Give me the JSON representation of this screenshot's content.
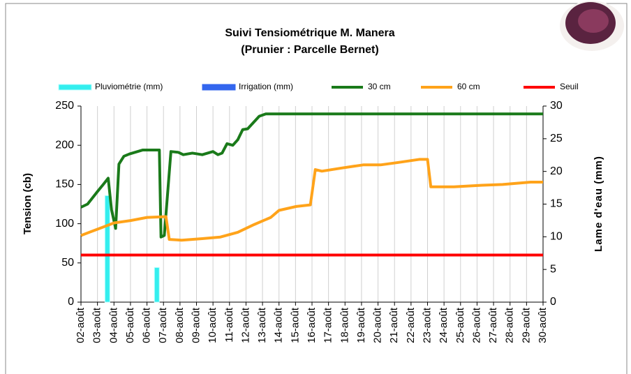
{
  "chart_data": {
    "type": "line",
    "title": "Suivi Tensiométrique M. Manera",
    "subtitle": "(Prunier : Parcelle Bernet)",
    "ylabel": "Tension (cb)",
    "y2label": "Lame d'eau (mm)",
    "xlim": [
      2,
      30
    ],
    "xticks": [
      {
        "value": 2,
        "label": "02-août"
      },
      {
        "value": 3,
        "label": "03-août"
      },
      {
        "value": 4,
        "label": "04-août"
      },
      {
        "value": 5,
        "label": "05-août"
      },
      {
        "value": 6,
        "label": "06-août"
      },
      {
        "value": 7,
        "label": "07-août"
      },
      {
        "value": 8,
        "label": "08-août"
      },
      {
        "value": 9,
        "label": "09-août"
      },
      {
        "value": 10,
        "label": "10-août"
      },
      {
        "value": 11,
        "label": "11-août"
      },
      {
        "value": 12,
        "label": "12-août"
      },
      {
        "value": 13,
        "label": "13-août"
      },
      {
        "value": 14,
        "label": "14-août"
      },
      {
        "value": 15,
        "label": "15-août"
      },
      {
        "value": 16,
        "label": "16-août"
      },
      {
        "value": 17,
        "label": "17-août"
      },
      {
        "value": 18,
        "label": "18-août"
      },
      {
        "value": 19,
        "label": "19-août"
      },
      {
        "value": 20,
        "label": "20-août"
      },
      {
        "value": 21,
        "label": "21-août"
      },
      {
        "value": 22,
        "label": "22-août"
      },
      {
        "value": 23,
        "label": "23-août"
      },
      {
        "value": 24,
        "label": "24-août"
      },
      {
        "value": 25,
        "label": "25-août"
      },
      {
        "value": 26,
        "label": "26-août"
      },
      {
        "value": 27,
        "label": "27-août"
      },
      {
        "value": 28,
        "label": "28-août"
      },
      {
        "value": 29,
        "label": "29-août"
      },
      {
        "value": 30,
        "label": "30-août"
      }
    ],
    "ylim": [
      0,
      250
    ],
    "yticks": [
      0,
      50,
      100,
      150,
      200,
      250
    ],
    "y2lim": [
      0,
      30
    ],
    "y2ticks": [
      0,
      5,
      10,
      15,
      20,
      25,
      30
    ],
    "grid": true,
    "series": [
      {
        "name": "Pluviométrie (mm)",
        "type": "bar",
        "axis": "y2",
        "color": "#33eeee",
        "x": [
          3.6,
          6.6
        ],
        "values": [
          16.3,
          5.3
        ]
      },
      {
        "name": "Irrigation (mm)",
        "type": "bar",
        "axis": "y2",
        "color": "#3366ee",
        "x": [],
        "values": []
      },
      {
        "name": "30 cm",
        "type": "line",
        "color": "#1a7a1a",
        "x": [
          2.0,
          2.4,
          3.0,
          3.35,
          3.65,
          3.85,
          4.1,
          4.3,
          4.6,
          4.95,
          5.75,
          6.75,
          6.85,
          7.05,
          7.45,
          7.9,
          8.2,
          8.75,
          9.35,
          10.0,
          10.3,
          10.55,
          10.85,
          11.2,
          11.5,
          11.8,
          12.1,
          12.45,
          12.8,
          13.2,
          30.0
        ],
        "values": [
          121,
          125,
          141,
          150,
          158,
          118,
          94,
          176,
          186,
          189,
          194,
          194,
          83,
          85,
          192,
          191,
          188,
          190,
          188,
          192,
          188,
          190,
          202,
          200,
          207,
          220,
          221,
          229,
          237,
          240,
          240
        ]
      },
      {
        "name": "60 cm",
        "type": "line",
        "color": "#ffa31a",
        "x": [
          2,
          3,
          4,
          5,
          6,
          7.15,
          7.35,
          8.1,
          9.35,
          10.45,
          11.5,
          12.5,
          13.5,
          14.0,
          15.05,
          15.9,
          16.2,
          16.6,
          17.8,
          19.1,
          20.15,
          21.2,
          22.5,
          23.0,
          23.2,
          24.6,
          26.3,
          27.55,
          29.25,
          30
        ],
        "values": [
          85,
          93,
          101,
          104,
          108,
          109,
          80,
          79,
          81,
          83,
          89,
          99,
          108,
          117,
          122,
          124,
          169,
          167,
          171,
          175,
          175,
          178,
          182,
          182,
          147,
          147,
          149,
          150,
          153,
          153
        ]
      },
      {
        "name": "Seuil",
        "type": "line",
        "color": "#ff0000",
        "x": [
          2,
          30
        ],
        "values": [
          60,
          60
        ]
      }
    ]
  }
}
